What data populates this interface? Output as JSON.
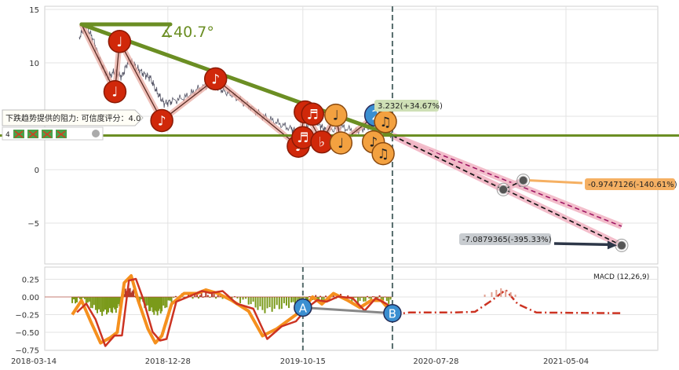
{
  "chart_data": [
    {
      "type": "line",
      "panel": "price",
      "ylim": [
        -7.8,
        15.3
      ],
      "yticks": [
        15,
        10,
        5,
        0,
        -5
      ],
      "ytick_labels": [
        "15",
        "10",
        "5",
        "0",
        "−5"
      ],
      "price_series": [
        {
          "x": "2018-06-20",
          "y": 12.4
        },
        {
          "x": "2018-07-05",
          "y": 13.5
        },
        {
          "x": "2018-07-20",
          "y": 12.2
        },
        {
          "x": "2018-08-05",
          "y": 10.1
        },
        {
          "x": "2018-08-20",
          "y": 8.6
        },
        {
          "x": "2018-09-05",
          "y": 9.2
        },
        {
          "x": "2018-09-20",
          "y": 8.7
        },
        {
          "x": "2018-10-05",
          "y": 10.3
        },
        {
          "x": "2018-10-20",
          "y": 9.6
        },
        {
          "x": "2018-11-05",
          "y": 9.0
        },
        {
          "x": "2018-11-20",
          "y": 8.6
        },
        {
          "x": "2018-12-05",
          "y": 7.2
        },
        {
          "x": "2018-12-20",
          "y": 6.2
        },
        {
          "x": "2019-01-05",
          "y": 6.4
        },
        {
          "x": "2019-02-05",
          "y": 6.8
        },
        {
          "x": "2019-03-05",
          "y": 7.6
        },
        {
          "x": "2019-04-05",
          "y": 8.1
        },
        {
          "x": "2019-04-25",
          "y": 7.4
        },
        {
          "x": "2019-05-20",
          "y": 6.9
        },
        {
          "x": "2019-06-20",
          "y": 6.0
        },
        {
          "x": "2019-07-20",
          "y": 5.0
        },
        {
          "x": "2019-08-20",
          "y": 4.4
        },
        {
          "x": "2019-09-20",
          "y": 3.8
        },
        {
          "x": "2019-10-05",
          "y": 3.5
        },
        {
          "x": "2019-10-20",
          "y": 3.7
        },
        {
          "x": "2019-11-05",
          "y": 5.0
        },
        {
          "x": "2019-11-20",
          "y": 4.2
        },
        {
          "x": "2019-12-05",
          "y": 3.6
        },
        {
          "x": "2020-01-05",
          "y": 4.0
        },
        {
          "x": "2020-02-05",
          "y": 3.6
        },
        {
          "x": "2020-03-01",
          "y": 4.0
        },
        {
          "x": "2020-03-20",
          "y": 4.6
        },
        {
          "x": "2020-04-05",
          "y": 3.8
        },
        {
          "x": "2020-04-25",
          "y": 3.3
        }
      ],
      "trend_line": {
        "from": {
          "x": "2018-06-25",
          "y": 13.6
        },
        "to": {
          "x": "2020-04-25",
          "y": 3.2
        },
        "color": "#6b8e23"
      },
      "angle_label": "∡40.7°",
      "resistance_line": {
        "y": 3.2,
        "color": "#6b8e23"
      },
      "resistance_label": "下跌趋势提供的阻力: 可信度评分：4.0",
      "legend_count": "4",
      "upper_note_label": "3.232(+34.67%)",
      "projection_pink": {
        "from": {
          "x": "2020-04-25",
          "y": 3.2
        },
        "to": {
          "x": "2021-09-01",
          "y": -5.3
        }
      },
      "projection_lower": {
        "points": [
          {
            "x": "2020-04-25",
            "y": 3.2
          },
          {
            "x": "2020-12-20",
            "y": -1.86
          },
          {
            "x": "2021-02-01",
            "y": -1.0
          }
        ],
        "label": "-0.9747126(-140.61%)",
        "label_color": "#f5b063"
      },
      "projection_bottom": {
        "from": {
          "x": "2020-04-25",
          "y": 3.2
        },
        "to": {
          "x": "2021-09-01",
          "y": -7.09
        },
        "label": "-7.0879365(-395.33%)"
      },
      "dashed_vline_date": "2020-04-25",
      "note_markers": [
        {
          "x": "2018-09-15",
          "y": 12.0,
          "glyph": "♩",
          "style": "red"
        },
        {
          "x": "2018-09-05",
          "y": 7.3,
          "glyph": "♩",
          "style": "red"
        },
        {
          "x": "2018-12-15",
          "y": 4.6,
          "glyph": "♪",
          "style": "red"
        },
        {
          "x": "2019-04-10",
          "y": 8.5,
          "glyph": "♪",
          "style": "red"
        },
        {
          "x": "2019-10-20",
          "y": 5.4,
          "glyph": "♫",
          "style": "red"
        },
        {
          "x": "2019-10-05",
          "y": 2.2,
          "glyph": "♩",
          "style": "red"
        },
        {
          "x": "2019-10-15",
          "y": 3.0,
          "glyph": "♬",
          "style": "red"
        },
        {
          "x": "2019-11-05",
          "y": 5.2,
          "glyph": "♬",
          "style": "red"
        },
        {
          "x": "2019-11-25",
          "y": 2.6,
          "glyph": "♭",
          "style": "red"
        },
        {
          "x": "2019-12-25",
          "y": 5.1,
          "glyph": "♩",
          "style": "orange"
        },
        {
          "x": "2020-01-05",
          "y": 2.5,
          "glyph": "♩",
          "style": "orange"
        },
        {
          "x": "2020-03-20",
          "y": 5.1,
          "glyph": "2",
          "style": "blue"
        },
        {
          "x": "2020-04-10",
          "y": 4.5,
          "glyph": "♫",
          "style": "orange"
        },
        {
          "x": "2020-03-15",
          "y": 2.6,
          "glyph": "♪",
          "style": "orange"
        },
        {
          "x": "2020-04-05",
          "y": 1.5,
          "glyph": "♫",
          "style": "orange"
        }
      ],
      "target_markers": [
        {
          "x": "2020-12-20",
          "y": -1.86
        },
        {
          "x": "2021-02-01",
          "y": -1.0
        },
        {
          "x": "2021-09-01",
          "y": -7.09
        }
      ]
    },
    {
      "type": "line",
      "panel": "macd",
      "title": "MACD (12,26,9)",
      "ylim": [
        -0.78,
        0.42
      ],
      "yticks": [
        0.25,
        0.0,
        -0.25,
        -0.5,
        -0.75
      ],
      "ytick_labels": [
        "0.25",
        "0.00",
        "−0.25",
        "−0.50",
        "−0.75"
      ],
      "macd_series": [
        {
          "x": "2018-06-05",
          "y": -0.25
        },
        {
          "x": "2018-06-25",
          "y": -0.05
        },
        {
          "x": "2018-07-15",
          "y": -0.35
        },
        {
          "x": "2018-08-05",
          "y": -0.65
        },
        {
          "x": "2018-08-25",
          "y": -0.58
        },
        {
          "x": "2018-09-10",
          "y": -0.5
        },
        {
          "x": "2018-09-25",
          "y": 0.2
        },
        {
          "x": "2018-10-10",
          "y": 0.3
        },
        {
          "x": "2018-10-25",
          "y": -0.05
        },
        {
          "x": "2018-11-15",
          "y": -0.45
        },
        {
          "x": "2018-12-01",
          "y": -0.65
        },
        {
          "x": "2018-12-15",
          "y": -0.55
        },
        {
          "x": "2019-01-05",
          "y": -0.1
        },
        {
          "x": "2019-02-01",
          "y": 0.05
        },
        {
          "x": "2019-03-01",
          "y": 0.05
        },
        {
          "x": "2019-03-20",
          "y": 0.1
        },
        {
          "x": "2019-04-15",
          "y": 0.05
        },
        {
          "x": "2019-05-15",
          "y": -0.05
        },
        {
          "x": "2019-06-20",
          "y": -0.2
        },
        {
          "x": "2019-07-20",
          "y": -0.55
        },
        {
          "x": "2019-08-20",
          "y": -0.45
        },
        {
          "x": "2019-09-20",
          "y": -0.3
        },
        {
          "x": "2019-10-15",
          "y": -0.18
        },
        {
          "x": "2019-11-05",
          "y": 0.0
        },
        {
          "x": "2019-11-25",
          "y": -0.1
        },
        {
          "x": "2019-12-20",
          "y": 0.05
        },
        {
          "x": "2020-01-20",
          "y": -0.05
        },
        {
          "x": "2020-02-15",
          "y": -0.15
        },
        {
          "x": "2020-03-10",
          "y": -0.05
        },
        {
          "x": "2020-04-01",
          "y": -0.05
        },
        {
          "x": "2020-04-25",
          "y": -0.23
        }
      ],
      "signal_projection": [
        {
          "x": "2020-04-25",
          "y": -0.25
        },
        {
          "x": "2020-06-01",
          "y": -0.22
        },
        {
          "x": "2020-09-01",
          "y": -0.22
        },
        {
          "x": "2020-10-20",
          "y": -0.21
        },
        {
          "x": "2020-11-25",
          "y": -0.05
        },
        {
          "x": "2020-12-25",
          "y": 0.1
        },
        {
          "x": "2021-01-20",
          "y": -0.1
        },
        {
          "x": "2021-03-01",
          "y": -0.22
        },
        {
          "x": "2021-09-01",
          "y": -0.23
        }
      ],
      "point_a": {
        "x": "2019-10-15",
        "y": -0.15,
        "label": "A"
      },
      "point_b": {
        "x": "2020-04-25",
        "y": -0.23,
        "label": "B"
      }
    }
  ],
  "x_axis": {
    "range": [
      "2018-03-14",
      "2021-10-01"
    ],
    "ticks": [
      "2018-03-14",
      "2018-12-28",
      "2019-10-15",
      "2020-07-28",
      "2021-05-04"
    ]
  },
  "colors": {
    "price_line": "#555566",
    "trend": "#6b8e23",
    "red_marker": "#cc2200",
    "orange_marker": "#f0a040",
    "blue_marker": "#3388cc",
    "macd": "#f5901e",
    "signal": "#cc3322"
  }
}
